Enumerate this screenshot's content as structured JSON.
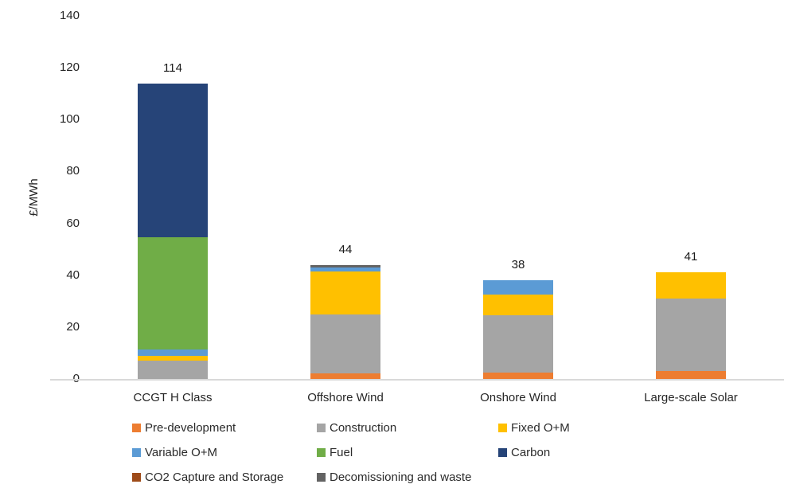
{
  "page": {
    "background": "#ffffff"
  },
  "chart_data": {
    "type": "bar",
    "stacked": true,
    "title": "",
    "xlabel": "",
    "ylabel": "£/MWh",
    "ylim": [
      0,
      140
    ],
    "ytick_step": 20,
    "yticks": [
      0,
      20,
      40,
      60,
      80,
      100,
      120,
      140
    ],
    "grid": false,
    "legend_position": "bottom",
    "categories": [
      "CCGT H Class",
      "Offshore Wind",
      "Onshore Wind",
      "Large-scale Solar"
    ],
    "totals": [
      114,
      44,
      38,
      41
    ],
    "series": [
      {
        "name": "Pre-development",
        "color": "#ED7D31",
        "values": [
          0,
          2,
          2.5,
          3
        ]
      },
      {
        "name": "Construction",
        "color": "#A5A5A5",
        "values": [
          7,
          23,
          22,
          28
        ]
      },
      {
        "name": "Fixed O+M",
        "color": "#FFC000",
        "values": [
          2,
          16.5,
          8,
          10
        ]
      },
      {
        "name": "Variable O+M",
        "color": "#5B9BD5",
        "values": [
          2.5,
          1.5,
          5.5,
          0
        ]
      },
      {
        "name": "Fuel",
        "color": "#70AD47",
        "values": [
          43,
          0,
          0,
          0
        ]
      },
      {
        "name": "Carbon",
        "color": "#264478",
        "values": [
          59.5,
          0,
          0,
          0
        ]
      },
      {
        "name": "CO2 Capture and Storage",
        "color": "#9E4B19",
        "values": [
          0,
          0,
          0,
          0
        ]
      },
      {
        "name": "Decomissioning and waste",
        "color": "#636363",
        "values": [
          0,
          1,
          0,
          0
        ]
      }
    ]
  }
}
